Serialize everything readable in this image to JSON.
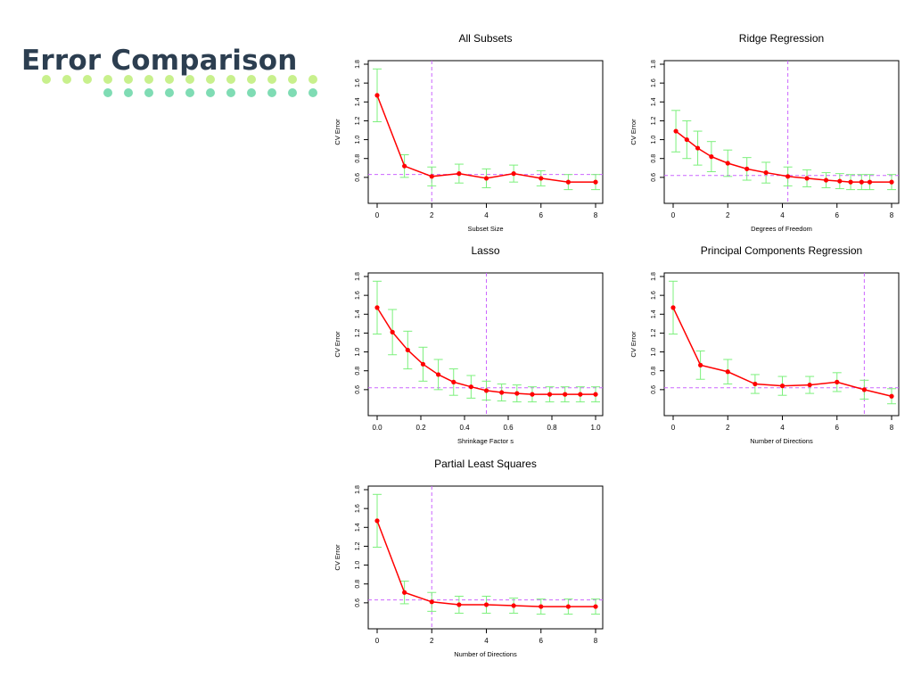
{
  "page": {
    "title": "Error Comparison",
    "dot_colors": {
      "row1": "#c8f08c",
      "row2": "#7fdcb4"
    }
  },
  "style": {
    "line_color": "#ff0000",
    "errorbar_color": "#7cf07c",
    "vline_color": "#cc66ff",
    "hline_color": "#cc66ff",
    "axis_color": "#000000"
  },
  "chart_data": [
    {
      "type": "line",
      "title": "All Subsets",
      "xlabel": "Subset Size",
      "ylabel": "CV Error",
      "xlim": [
        0,
        8
      ],
      "ylim": [
        0.4,
        1.8
      ],
      "xticks": [
        "0",
        "2",
        "4",
        "6",
        "8"
      ],
      "yticks": [
        "0.6",
        "0.8",
        "1.0",
        "1.2",
        "1.4",
        "1.6",
        "1.8"
      ],
      "x": [
        0,
        1,
        2,
        3,
        4,
        5,
        6,
        7,
        8
      ],
      "y": [
        1.47,
        0.72,
        0.61,
        0.64,
        0.59,
        0.64,
        0.59,
        0.55,
        0.55
      ],
      "err": [
        0.28,
        0.12,
        0.1,
        0.1,
        0.1,
        0.09,
        0.08,
        0.08,
        0.08
      ],
      "vline": 2,
      "hline": 0.63
    },
    {
      "type": "line",
      "title": "Ridge Regression",
      "xlabel": "Degrees of Freedom",
      "ylabel": "CV Error",
      "xlim": [
        0,
        8
      ],
      "ylim": [
        0.4,
        1.8
      ],
      "xticks": [
        "0",
        "2",
        "4",
        "6",
        "8"
      ],
      "yticks": [
        "0.6",
        "0.8",
        "1.0",
        "1.2",
        "1.4",
        "1.6",
        "1.8"
      ],
      "x": [
        0.1,
        0.5,
        0.9,
        1.4,
        2.0,
        2.7,
        3.4,
        4.2,
        4.9,
        5.6,
        6.1,
        6.5,
        6.9,
        7.2,
        8.0
      ],
      "y": [
        1.09,
        1.0,
        0.91,
        0.82,
        0.75,
        0.69,
        0.65,
        0.61,
        0.59,
        0.57,
        0.56,
        0.55,
        0.55,
        0.55,
        0.55
      ],
      "err": [
        0.22,
        0.2,
        0.18,
        0.16,
        0.14,
        0.12,
        0.11,
        0.1,
        0.09,
        0.08,
        0.08,
        0.08,
        0.08,
        0.08,
        0.08
      ],
      "vline": 4.2,
      "hline": 0.62
    },
    {
      "type": "line",
      "title": "Lasso",
      "xlabel": "Shrinkage Factor s",
      "ylabel": "CV Error",
      "xlim": [
        0,
        1
      ],
      "ylim": [
        0.4,
        1.8
      ],
      "xticks": [
        "0.0",
        "0.2",
        "0.4",
        "0.6",
        "0.8",
        "1.0"
      ],
      "yticks": [
        "0.6",
        "0.8",
        "1.0",
        "1.2",
        "1.4",
        "1.6",
        "1.8"
      ],
      "x": [
        0,
        0.07,
        0.14,
        0.21,
        0.28,
        0.35,
        0.43,
        0.5,
        0.57,
        0.64,
        0.71,
        0.79,
        0.86,
        0.93,
        1.0
      ],
      "y": [
        1.47,
        1.21,
        1.02,
        0.87,
        0.76,
        0.68,
        0.63,
        0.59,
        0.57,
        0.56,
        0.55,
        0.55,
        0.55,
        0.55,
        0.55
      ],
      "err": [
        0.28,
        0.24,
        0.2,
        0.18,
        0.16,
        0.14,
        0.12,
        0.1,
        0.09,
        0.09,
        0.08,
        0.08,
        0.08,
        0.08,
        0.08
      ],
      "vline": 0.5,
      "hline": 0.62
    },
    {
      "type": "line",
      "title": "Principal Components Regression",
      "xlabel": "Number of Directions",
      "ylabel": "CV Error",
      "xlim": [
        0,
        8
      ],
      "ylim": [
        0.4,
        1.8
      ],
      "xticks": [
        "0",
        "2",
        "4",
        "6",
        "8"
      ],
      "yticks": [
        "0.6",
        "0.8",
        "1.0",
        "1.2",
        "1.4",
        "1.6",
        "1.8"
      ],
      "x": [
        0,
        1,
        2,
        3,
        4,
        5,
        6,
        7,
        8
      ],
      "y": [
        1.47,
        0.86,
        0.79,
        0.66,
        0.64,
        0.65,
        0.68,
        0.6,
        0.53
      ],
      "err": [
        0.28,
        0.15,
        0.13,
        0.1,
        0.1,
        0.09,
        0.1,
        0.1,
        0.08
      ],
      "vline": 7,
      "hline": 0.62
    },
    {
      "type": "line",
      "title": "Partial Least Squares",
      "xlabel": "Number of  Directions",
      "ylabel": "CV Error",
      "xlim": [
        0,
        8
      ],
      "ylim": [
        0.4,
        1.8
      ],
      "xticks": [
        "0",
        "2",
        "4",
        "6",
        "8"
      ],
      "yticks": [
        "0.6",
        "0.8",
        "1.0",
        "1.2",
        "1.4",
        "1.6",
        "1.8"
      ],
      "x": [
        0,
        1,
        2,
        3,
        4,
        5,
        6,
        7,
        8
      ],
      "y": [
        1.47,
        0.71,
        0.61,
        0.58,
        0.58,
        0.57,
        0.56,
        0.56,
        0.56
      ],
      "err": [
        0.28,
        0.12,
        0.1,
        0.09,
        0.09,
        0.08,
        0.08,
        0.08,
        0.08
      ],
      "vline": 2,
      "hline": 0.63
    }
  ]
}
